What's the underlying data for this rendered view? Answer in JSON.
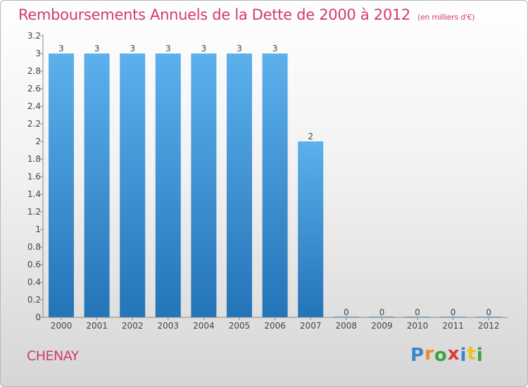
{
  "title": "Remboursements Annuels de la Dette de 2000 à 2012",
  "unit": "(en milliers d'€)",
  "town": "CHENAY",
  "logo": {
    "letters": [
      "P",
      "r",
      "o",
      "x",
      "i",
      "t",
      "i"
    ],
    "colors": [
      "#3a86c8",
      "#f08a24",
      "#3aa33a",
      "#d93a3a",
      "#3a86c8",
      "#f0c020",
      "#3aa33a"
    ]
  },
  "colors": {
    "bar": "#3f97df",
    "accent": "#d23a6e"
  },
  "chart_data": {
    "type": "bar",
    "categories": [
      "2000",
      "2001",
      "2002",
      "2003",
      "2004",
      "2005",
      "2006",
      "2007",
      "2008",
      "2009",
      "2010",
      "2011",
      "2012"
    ],
    "values": [
      3,
      3,
      3,
      3,
      3,
      3,
      3,
      2,
      0,
      0,
      0,
      0,
      0
    ],
    "data_labels": [
      "3",
      "3",
      "3",
      "3",
      "3",
      "3",
      "3",
      "2",
      "0",
      "0",
      "0",
      "0",
      "0"
    ],
    "ylim": [
      0,
      3.2
    ],
    "yticks": [
      {
        "value": 0,
        "label": "0"
      },
      {
        "value": 0.2,
        "label": "0.2"
      },
      {
        "value": 0.4,
        "label": "0.4"
      },
      {
        "value": 0.6,
        "label": "0.6"
      },
      {
        "value": 0.8,
        "label": "0.8"
      },
      {
        "value": 1,
        "label": "1"
      },
      {
        "value": 1.2,
        "label": "1.2"
      },
      {
        "value": 1.4,
        "label": "1.4"
      },
      {
        "value": 1.6,
        "label": "1.6"
      },
      {
        "value": 1.8,
        "label": "1.8"
      },
      {
        "value": 2,
        "label": "2"
      },
      {
        "value": 2.2,
        "label": "2.2"
      },
      {
        "value": 2.4,
        "label": "2.4"
      },
      {
        "value": 2.6,
        "label": "2.6"
      },
      {
        "value": 2.8,
        "label": "2.8"
      },
      {
        "value": 3,
        "label": "3"
      },
      {
        "value": 3.2,
        "label": "3.2"
      }
    ],
    "grid": false,
    "legend": "none"
  }
}
